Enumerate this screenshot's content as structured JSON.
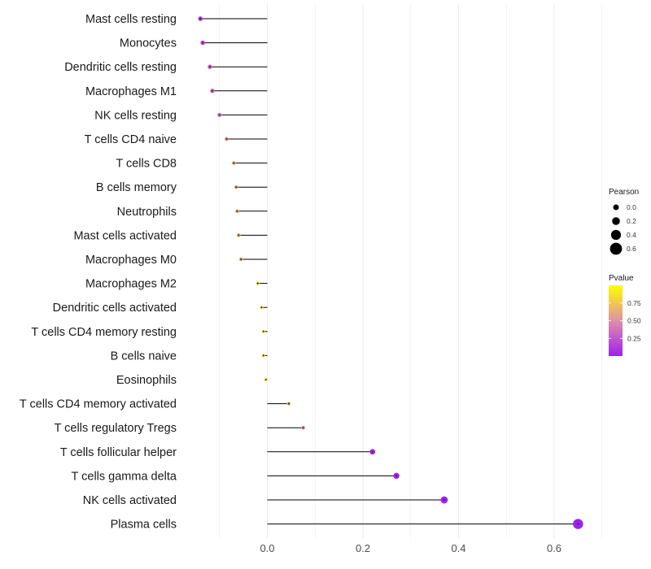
{
  "chart_data": {
    "type": "lollipop",
    "categories": [
      "Mast cells resting",
      "Monocytes",
      "Dendritic cells resting",
      "Macrophages M1",
      "NK cells resting",
      "T cells CD4 naive",
      "T cells CD8",
      "B cells memory",
      "Neutrophils",
      "Mast cells activated",
      "Macrophages M0",
      "Macrophages M2",
      "Dendritic cells activated",
      "T cells CD4 memory resting",
      "B cells naive",
      "Eosinophils",
      "T cells CD4 memory activated",
      "T cells regulatory  Tregs ",
      "T cells follicular helper",
      "T cells gamma delta",
      "NK cells activated",
      "Plasma cells"
    ],
    "values": [
      -0.14,
      -0.135,
      -0.12,
      -0.115,
      -0.1,
      -0.085,
      -0.07,
      -0.065,
      -0.063,
      -0.06,
      -0.055,
      -0.02,
      -0.012,
      -0.008,
      -0.008,
      -0.003,
      0.045,
      0.075,
      0.22,
      0.27,
      0.37,
      0.65
    ],
    "pvalues": [
      0.12,
      0.22,
      0.3,
      0.33,
      0.4,
      0.55,
      0.62,
      0.63,
      0.65,
      0.66,
      0.67,
      0.88,
      0.93,
      0.95,
      0.95,
      0.99,
      0.7,
      0.55,
      0.04,
      0.02,
      0.003,
      0.0003
    ],
    "xlim": [
      -0.18,
      0.72
    ],
    "x_ticks": [
      "0.0",
      "0.2",
      "0.4",
      "0.6"
    ],
    "x_tick_values": [
      0,
      0.2,
      0.4,
      0.6
    ],
    "title": "",
    "xlabel": "",
    "ylabel": "",
    "grid": "vertical",
    "legend_position": "right",
    "legend_size": {
      "title": "Pearson",
      "labels": [
        "0.0",
        "0.2",
        "0.4",
        "0.6"
      ],
      "values": [
        0,
        0.2,
        0.4,
        0.6
      ]
    },
    "legend_color": {
      "title": "Pvalue",
      "labels": [
        "0.75",
        "0.50",
        "0.25"
      ],
      "values": [
        0.75,
        0.5,
        0.25
      ],
      "low_color": "#a020f0",
      "high_color": "#ffff00"
    },
    "segment_color": "#000000",
    "grid_color": "#ebebeb"
  }
}
